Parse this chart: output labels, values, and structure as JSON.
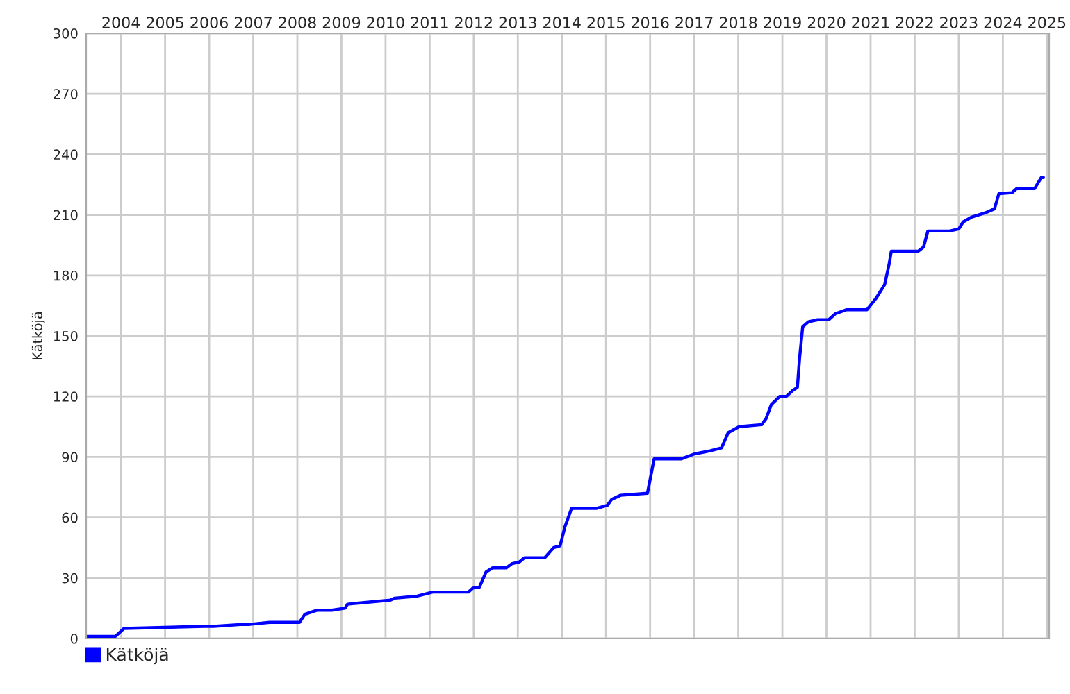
{
  "chart_data": {
    "type": "line",
    "ylabel": "Kätköjä",
    "x": [
      2003.71,
      2004.37,
      2004.57,
      2006.4,
      2006.6,
      2007.26,
      2007.42,
      2007.87,
      2008.12,
      2008.55,
      2008.67,
      2008.94,
      2009.28,
      2009.58,
      2009.64,
      2010.1,
      2010.61,
      2010.71,
      2011.22,
      2011.57,
      2012.38,
      2012.48,
      2012.63,
      2012.78,
      2012.93,
      2013.24,
      2013.36,
      2013.54,
      2013.65,
      2014.11,
      2014.31,
      2014.46,
      2014.57,
      2014.72,
      2015.28,
      2015.53,
      2015.63,
      2015.83,
      2016.44,
      2016.59,
      2017.2,
      2017.51,
      2017.86,
      2018.12,
      2018.27,
      2018.52,
      2019.03,
      2019.13,
      2019.25,
      2019.44,
      2019.59,
      2019.74,
      2019.84,
      2019.89,
      2019.96,
      2020.09,
      2020.3,
      2020.55,
      2020.7,
      2020.96,
      2021.42,
      2021.62,
      2021.82,
      2021.92,
      2021.97,
      2022.58,
      2022.7,
      2022.8,
      2023.29,
      2023.5,
      2023.6,
      2023.8,
      2024.1,
      2024.31,
      2024.41,
      2024.71,
      2024.81,
      2025.22,
      2025.37,
      2025.42
    ],
    "series": [
      {
        "name": "Kätköjä",
        "color": "#0000ff",
        "values": [
          1,
          1,
          5,
          6,
          6,
          7,
          7,
          8,
          8,
          8,
          12,
          14,
          14,
          15,
          17,
          18,
          19,
          20,
          21,
          23,
          23,
          25,
          25.5,
          33,
          35,
          35,
          37,
          38,
          40,
          40,
          45,
          46,
          55.5,
          64.5,
          64.5,
          66,
          69,
          71,
          72,
          89,
          89,
          91.5,
          93,
          94.5,
          102,
          105,
          106,
          109,
          116,
          120,
          120,
          123,
          124.5,
          139,
          154.5,
          157,
          158,
          158,
          161,
          163,
          163,
          168.5,
          175.5,
          185.5,
          192,
          192,
          194,
          202,
          202,
          203,
          206.5,
          209,
          211,
          213,
          220.5,
          221,
          223,
          223,
          228.5,
          228.5
        ]
      }
    ],
    "xlim": [
      2003.71,
      2025.55
    ],
    "xticks": [
      {
        "value": 2004.5,
        "label": "2004"
      },
      {
        "value": 2005.5,
        "label": "2005"
      },
      {
        "value": 2006.5,
        "label": "2006"
      },
      {
        "value": 2007.5,
        "label": "2007"
      },
      {
        "value": 2008.5,
        "label": "2008"
      },
      {
        "value": 2009.5,
        "label": "2009"
      },
      {
        "value": 2010.5,
        "label": "2010"
      },
      {
        "value": 2011.5,
        "label": "2011"
      },
      {
        "value": 2012.5,
        "label": "2012"
      },
      {
        "value": 2013.5,
        "label": "2013"
      },
      {
        "value": 2014.5,
        "label": "2014"
      },
      {
        "value": 2015.5,
        "label": "2015"
      },
      {
        "value": 2016.5,
        "label": "2016"
      },
      {
        "value": 2017.5,
        "label": "2017"
      },
      {
        "value": 2018.5,
        "label": "2018"
      },
      {
        "value": 2019.5,
        "label": "2019"
      },
      {
        "value": 2020.5,
        "label": "2020"
      },
      {
        "value": 2021.5,
        "label": "2021"
      },
      {
        "value": 2022.5,
        "label": "2022"
      },
      {
        "value": 2023.5,
        "label": "2023"
      },
      {
        "value": 2024.5,
        "label": "2024"
      },
      {
        "value": 2025.5,
        "label": "2025"
      }
    ],
    "ylim": [
      0,
      300
    ],
    "yticks": [
      0,
      30,
      60,
      90,
      120,
      150,
      180,
      210,
      240,
      270,
      300
    ],
    "grid": true,
    "legend": "bottom left",
    "marker": "none",
    "line_style": "solid"
  }
}
